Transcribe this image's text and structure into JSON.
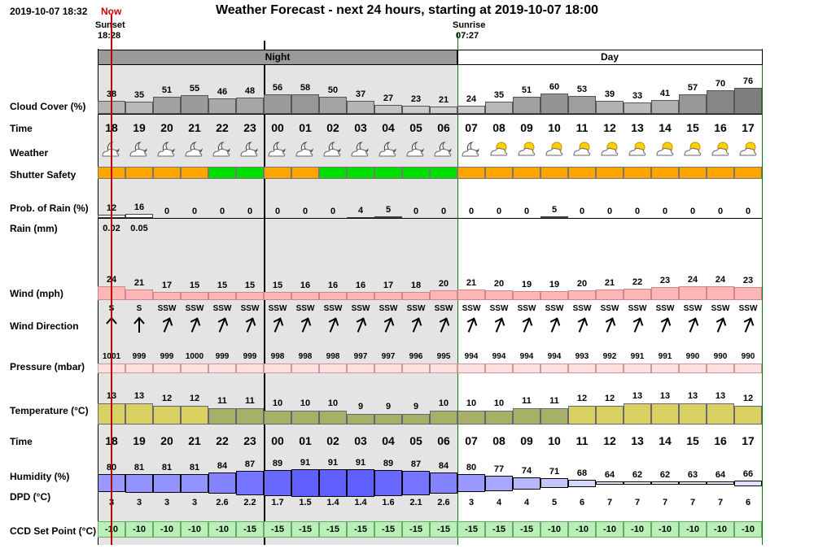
{
  "header": {
    "timestamp": "2019-10-07 18:32",
    "now_label": "Now",
    "title": "Weather Forecast - next 24 hours, starting at 2019-10-07 18:00",
    "sunset_label": "Sunset",
    "sunset_time": "18:28",
    "sunrise_label": "Sunrise",
    "sunrise_time": "07:27",
    "night_label": "Night",
    "day_label": "Day"
  },
  "labels": {
    "cloud": "Cloud Cover (%)",
    "time": "Time",
    "weather": "Weather",
    "shutter": "Shutter Safety",
    "rain_prob": "Prob. of Rain (%)",
    "rain_mm": "Rain (mm)",
    "wind": "Wind (mph)",
    "wind_dir": "Wind Direction",
    "pressure": "Pressure (mbar)",
    "temperature": "Temperature (°C)",
    "time2": "Time",
    "humidity": "Humidity (%)",
    "dpd": "DPD (°C)",
    "ccd": "CCD Set Point (°C)"
  },
  "colors": {
    "night_bg": "#e4e4e4",
    "header_night": "#9a9a9a",
    "shutter_safe": "#00e000",
    "shutter_unsafe": "#ffa500",
    "wind_fill": "#ffb6b6",
    "pressure_fill": "#ffe0e0",
    "temp_warm": "#d8d060",
    "temp_cool": "#a8b068",
    "humidity_fill": "#6060f0",
    "ccd_fill": "#b8f0b8",
    "border": "#008000",
    "now_line": "#c00000"
  },
  "chart_data": {
    "type": "table",
    "hours": [
      "18",
      "19",
      "20",
      "21",
      "22",
      "23",
      "00",
      "01",
      "02",
      "03",
      "04",
      "05",
      "06",
      "07",
      "08",
      "09",
      "10",
      "11",
      "12",
      "13",
      "14",
      "15",
      "16",
      "17"
    ],
    "night_hours": [
      0,
      13
    ],
    "cloud_cover": [
      38,
      35,
      51,
      55,
      46,
      48,
      56,
      58,
      50,
      37,
      27,
      23,
      21,
      24,
      35,
      51,
      60,
      53,
      39,
      33,
      41,
      57,
      70,
      76
    ],
    "weather_icons": [
      "cloud-moon",
      "cloud-moon",
      "cloud-moon",
      "cloud-moon",
      "cloud-moon",
      "cloud-moon",
      "cloud-moon",
      "cloud-moon",
      "cloud-moon",
      "cloud-moon",
      "cloud-moon",
      "cloud-moon",
      "cloud-moon",
      "cloud-moon",
      "cloud-sun",
      "cloud-sun",
      "cloud-sun",
      "cloud-sun",
      "cloud-sun",
      "cloud-sun",
      "cloud-sun",
      "cloud-sun",
      "cloud-sun",
      "cloud-sun"
    ],
    "shutter_safety": [
      "unsafe",
      "unsafe",
      "unsafe",
      "unsafe",
      "safe",
      "safe",
      "unsafe",
      "unsafe",
      "safe",
      "safe",
      "safe",
      "safe",
      "safe",
      "unsafe",
      "unsafe",
      "unsafe",
      "unsafe",
      "unsafe",
      "unsafe",
      "unsafe",
      "unsafe",
      "unsafe",
      "unsafe",
      "unsafe"
    ],
    "rain_probability": [
      12,
      16,
      0,
      0,
      0,
      0,
      0,
      0,
      0,
      4,
      5,
      0,
      0,
      0,
      0,
      0,
      5,
      0,
      0,
      0,
      0,
      0,
      0,
      0
    ],
    "rain_mm": [
      "0.02",
      "0.05",
      "",
      "",
      "",
      "",
      "",
      "",
      "",
      "",
      "",
      "",
      "",
      "",
      "",
      "",
      "",
      "",
      "",
      "",
      "",
      "",
      "",
      ""
    ],
    "wind_mph": [
      24,
      21,
      17,
      15,
      15,
      15,
      15,
      16,
      16,
      16,
      17,
      18,
      20,
      21,
      20,
      19,
      19,
      20,
      21,
      22,
      23,
      24,
      24,
      23
    ],
    "wind_direction": [
      "S",
      "S",
      "SSW",
      "SSW",
      "SSW",
      "SSW",
      "SSW",
      "SSW",
      "SSW",
      "SSW",
      "SSW",
      "SSW",
      "SSW",
      "SSW",
      "SSW",
      "SSW",
      "SSW",
      "SSW",
      "SSW",
      "SSW",
      "SSW",
      "SSW",
      "SSW",
      "SSW"
    ],
    "pressure_mbar": [
      1001,
      999,
      999,
      1000,
      999,
      999,
      998,
      998,
      998,
      997,
      997,
      996,
      995,
      994,
      994,
      994,
      994,
      993,
      992,
      991,
      991,
      990,
      990,
      990
    ],
    "temperature_c": [
      13,
      13,
      12,
      12,
      11,
      11,
      10,
      10,
      10,
      9,
      9,
      9,
      10,
      10,
      10,
      11,
      11,
      12,
      12,
      13,
      13,
      13,
      13,
      12
    ],
    "humidity_pct": [
      80,
      81,
      81,
      81,
      84,
      87,
      89,
      91,
      91,
      91,
      89,
      87,
      84,
      80,
      77,
      74,
      71,
      68,
      64,
      62,
      62,
      63,
      64,
      66
    ],
    "dpd_c": [
      "3",
      "3",
      "3",
      "3",
      "2.6",
      "2.2",
      "1.7",
      "1.5",
      "1.4",
      "1.4",
      "1.6",
      "2.1",
      "2.6",
      "3",
      "4",
      "4",
      "5",
      "6",
      "7",
      "7",
      "7",
      "7",
      "7",
      "6"
    ],
    "ccd_set_point_c": [
      -10,
      -10,
      -10,
      -10,
      -10,
      -15,
      -15,
      -15,
      -15,
      -15,
      -15,
      -15,
      -15,
      -15,
      -15,
      -15,
      -10,
      -10,
      -10,
      -10,
      -10,
      -10,
      -10,
      -10
    ]
  }
}
